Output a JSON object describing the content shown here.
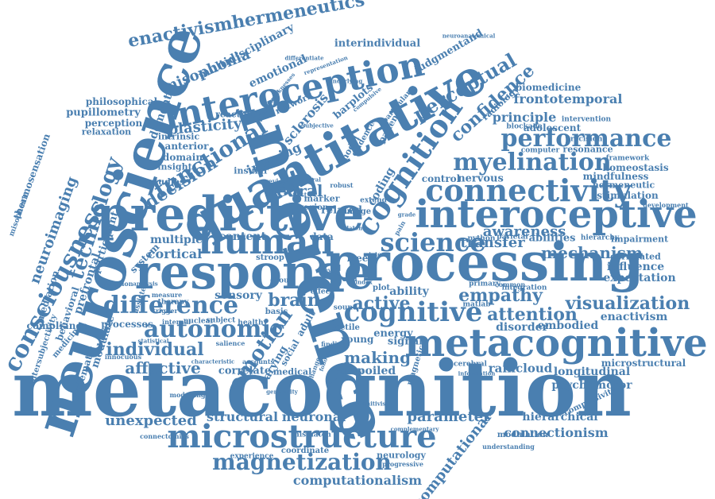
{
  "colors": {
    "ink": "#4a7fb0",
    "background": "#ffffff"
  },
  "words": [
    "metacognition",
    "neuroscience",
    "inference",
    "quantitative",
    "processing",
    "response",
    "predictive",
    "human",
    "interoceptive",
    "metacognitive",
    "interoception",
    "connectivity",
    "microstructure",
    "cognition",
    "cognitive",
    "science",
    "consciousness",
    "performance",
    "myelination",
    "difference",
    "autonomic",
    "emotion",
    "functional",
    "decision",
    "technology",
    "neuroimaging",
    "magnetization",
    "enactivismhermeneutics",
    "confidence",
    "perceptual",
    "individual",
    "affective",
    "visualization",
    "attention",
    "empathy",
    "active",
    "mechanism",
    "making",
    "brain",
    "neural",
    "transfer",
    "awareness",
    "parameter",
    "unexpected",
    "structural",
    "neuronal",
    "computational",
    "computationalism",
    "frontotemporal",
    "principle",
    "plasticity",
    "misophonia",
    "multidisciplinary",
    "interindividual",
    "judgmentand",
    "emotional",
    "imaging",
    "sclerosis",
    "barplots",
    "connectionism",
    "hierarchical",
    "longitudinal",
    "psychomotor",
    "microstructural",
    "raincloud",
    "spoiled",
    "embodied",
    "disorder",
    "enactivism",
    "expectation",
    "influence",
    "correlated",
    "impairment",
    "hierarchy",
    "development",
    "stimulation",
    "hermeneutic",
    "mindfulness",
    "homeostasis",
    "framework",
    "resonance",
    "computer",
    "adolescent",
    "intervention",
    "precision",
    "biomedicine",
    "radiology",
    "blockade",
    "thermosensation",
    "misophonic",
    "mediation",
    "behavioral",
    "prefrontal",
    "pupillometry",
    "perception",
    "relaxation",
    "philosophical",
    "dementia",
    "participant",
    "multiple",
    "cortical",
    "content",
    "system",
    "sensory",
    "processes",
    "modulate",
    "anterior",
    "domain",
    "insight",
    "studies",
    "intrinsic",
    "reactivity",
    "network",
    "insular",
    "marker",
    "related",
    "coding",
    "nervous",
    "control",
    "python",
    "parietal",
    "abilities",
    "matlab",
    "integration",
    "primary",
    "common",
    "tactile",
    "young",
    "signal",
    "energy",
    "ability",
    "data",
    "stroop",
    "iron",
    "region",
    "basis",
    "adult",
    "healthy",
    "subject",
    "nuclear",
    "internal",
    "therapy",
    "measure",
    "trigger",
    "violation",
    "analysis",
    "assisted",
    "varying",
    "group",
    "social",
    "correlate",
    "medical",
    "magnetic",
    "cerebral",
    "information",
    "modelling",
    "generality",
    "cognitivism",
    "complementary",
    "mismatch",
    "coordinate",
    "neurology",
    "progressive",
    "understanding",
    "modulation",
    "compulsivity",
    "connectomics",
    "experience",
    "systematic",
    "intersubjectivity",
    "compliance",
    "medicine",
    "innocuous",
    "statistical",
    "salience",
    "characteristic",
    "accounts",
    "change",
    "finding",
    "following",
    "activity",
    "cold",
    "sound",
    "effect",
    "free",
    "plot",
    "image",
    "model",
    "evidence",
    "patient",
    "particular",
    "oxygen",
    "review",
    "extend",
    "robust",
    "central",
    "affect",
    "latent",
    "grade",
    "subjective",
    "autopoiesis",
    "weaknesses",
    "differentiate",
    "representation",
    "underlying",
    "compulsive",
    "neuroanatomical",
    "pain",
    "level",
    "state",
    "index"
  ]
}
